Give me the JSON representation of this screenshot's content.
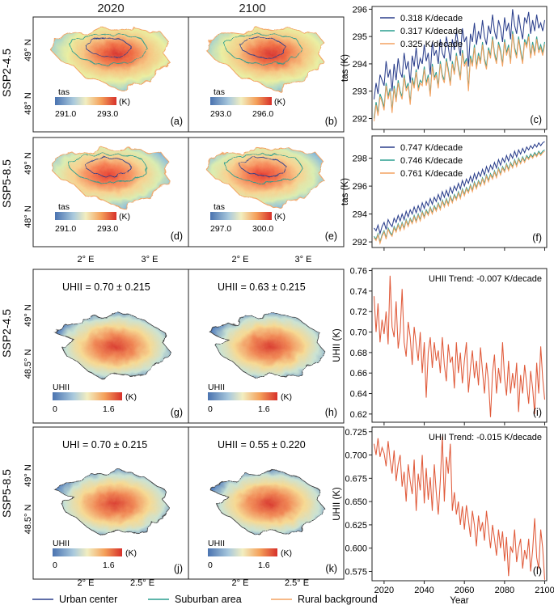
{
  "columns": [
    "2020",
    "2100"
  ],
  "row_labels": [
    "SSP2-4.5",
    "SSP5-8.5",
    "SSP2-4.5",
    "SSP5-8.5"
  ],
  "map_lat_ticks_top": [
    "49° N",
    "48° N"
  ],
  "map_lon_ticks_top": [
    "2° E",
    "3° E"
  ],
  "map_lat_ticks_bottom": [
    "49° N",
    "48.5° N"
  ],
  "map_lon_ticks_bottom": [
    "2° E",
    "2.5° E"
  ],
  "maps": [
    {
      "id": "a",
      "label": "(a)",
      "var": "tas",
      "min": "291.0",
      "max": "293.0",
      "unit": "(K)",
      "kind": "tas",
      "warm": 0.45
    },
    {
      "id": "b",
      "label": "(b)",
      "var": "tas",
      "min": "293.0",
      "max": "296.0",
      "unit": "(K)",
      "kind": "tas",
      "warm": 0.5
    },
    {
      "id": "d",
      "label": "(d)",
      "var": "tas",
      "min": "291.0",
      "max": "293.0",
      "unit": "(K)",
      "kind": "tas",
      "warm": 0.35
    },
    {
      "id": "e",
      "label": "(e)",
      "var": "tas",
      "min": "297.0",
      "max": "300.0",
      "unit": "(K)",
      "kind": "tas",
      "warm": 0.3
    },
    {
      "id": "g",
      "label": "(g)",
      "var": "UHII",
      "min": "0",
      "max": "1.6",
      "unit": "(K)",
      "kind": "uhi",
      "title": "UHII = 0.70 ± 0.215"
    },
    {
      "id": "h",
      "label": "(h)",
      "var": "UHII",
      "min": "0",
      "max": "1.6",
      "unit": "(K)",
      "kind": "uhi",
      "title": "UHII = 0.63 ± 0.215"
    },
    {
      "id": "j",
      "label": "(j)",
      "var": "UHII",
      "min": "0",
      "max": "1.6",
      "unit": "(K)",
      "kind": "uhi",
      "title": "UHI = 0.70 ± 0.215"
    },
    {
      "id": "k",
      "label": "(k)",
      "var": "UHII",
      "min": "0",
      "max": "1.6",
      "unit": "(K)",
      "kind": "uhi",
      "title": "UHII = 0.55 ± 0.220"
    }
  ],
  "legend": [
    {
      "name": "Urban center",
      "color": "#2b3f8c"
    },
    {
      "name": "Suburban area",
      "color": "#2a9d8f"
    },
    {
      "name": "Rural background",
      "color": "#f4a261"
    }
  ],
  "chart_data": [
    {
      "id": "c",
      "panel_label": "(c)",
      "type": "line",
      "ylabel": "tas (K)",
      "xlim": [
        2014,
        2101
      ],
      "ylim": [
        291.6,
        296.1
      ],
      "yticks": [
        292,
        293,
        294,
        295,
        296
      ],
      "series_legend": [
        "0.318 K/decade",
        "0.317 K/decade",
        "0.325 K/decade"
      ],
      "series": [
        {
          "name": "Urban center",
          "color": "#2b3f8c",
          "start": 2015,
          "values": [
            292.7,
            293.3,
            292.9,
            293.6,
            293.4,
            293.2,
            294.1,
            293.5,
            293.8,
            293.0,
            294.0,
            293.4,
            294.2,
            293.7,
            293.5,
            294.4,
            293.8,
            294.1,
            293.3,
            294.3,
            293.9,
            294.6,
            293.8,
            294.2,
            294.0,
            294.7,
            294.1,
            294.4,
            293.6,
            294.8,
            294.3,
            294.5,
            294.0,
            294.9,
            294.4,
            294.2,
            295.0,
            294.6,
            294.1,
            294.9,
            294.5,
            295.2,
            294.7,
            294.3,
            295.3,
            294.8,
            295.0,
            293.9,
            295.1,
            294.8,
            295.5,
            294.7,
            295.2,
            294.9,
            295.6,
            295.0,
            294.7,
            295.4,
            295.1,
            295.8,
            295.2,
            294.9,
            295.6,
            295.3,
            294.8,
            295.7,
            295.2,
            295.5,
            294.9,
            296.0,
            295.4,
            295.1,
            295.8,
            295.3,
            294.9,
            295.7,
            295.5,
            295.9,
            295.1,
            295.6,
            295.2,
            295.8,
            295.3,
            295.5,
            295.2,
            295.6
          ]
        },
        {
          "name": "Suburban area",
          "color": "#2a9d8f",
          "start": 2015,
          "values": [
            292.0,
            292.6,
            292.2,
            292.9,
            292.7,
            292.4,
            293.3,
            292.8,
            293.1,
            292.3,
            293.2,
            292.7,
            293.4,
            293.0,
            292.8,
            293.6,
            293.1,
            293.3,
            292.6,
            293.5,
            293.2,
            293.8,
            293.1,
            293.4,
            293.3,
            293.9,
            293.3,
            293.6,
            292.9,
            294.0,
            293.5,
            293.7,
            293.2,
            294.1,
            293.6,
            293.4,
            294.2,
            293.8,
            293.3,
            294.1,
            293.7,
            294.4,
            293.9,
            293.5,
            294.5,
            294.0,
            294.2,
            293.1,
            294.3,
            294.0,
            294.7,
            293.9,
            294.4,
            294.1,
            294.8,
            294.2,
            293.9,
            294.6,
            294.3,
            295.0,
            294.4,
            294.1,
            294.8,
            294.5,
            294.0,
            294.9,
            294.4,
            294.7,
            294.1,
            295.2,
            294.6,
            294.3,
            295.0,
            294.5,
            294.1,
            294.9,
            294.7,
            295.1,
            294.3,
            294.8,
            294.4,
            295.0,
            294.5,
            294.7,
            294.4,
            294.8
          ]
        },
        {
          "name": "Rural background",
          "color": "#f4a261",
          "start": 2015,
          "values": [
            291.9,
            292.5,
            292.1,
            292.8,
            292.6,
            292.3,
            293.2,
            292.7,
            293.0,
            292.2,
            293.1,
            292.6,
            293.3,
            292.9,
            292.7,
            293.5,
            293.0,
            293.2,
            292.5,
            293.4,
            293.1,
            293.7,
            293.0,
            293.3,
            293.2,
            293.8,
            293.2,
            293.5,
            292.8,
            293.9,
            293.4,
            293.6,
            293.1,
            294.0,
            293.5,
            293.3,
            294.1,
            293.7,
            293.2,
            294.0,
            293.6,
            294.3,
            293.8,
            293.4,
            294.4,
            293.9,
            294.1,
            293.0,
            294.2,
            293.9,
            294.6,
            293.8,
            294.3,
            294.0,
            294.7,
            294.1,
            293.8,
            294.5,
            294.2,
            294.9,
            294.3,
            294.0,
            294.7,
            294.4,
            293.9,
            294.8,
            294.3,
            294.6,
            294.0,
            295.1,
            294.5,
            294.2,
            294.9,
            294.4,
            294.0,
            294.8,
            294.6,
            295.0,
            294.2,
            294.7,
            294.3,
            294.9,
            294.4,
            294.6,
            294.3,
            294.7
          ]
        }
      ]
    },
    {
      "id": "f",
      "panel_label": "(f)",
      "type": "line",
      "ylabel": "tas (K)",
      "xlim": [
        2014,
        2101
      ],
      "ylim": [
        291.6,
        299.6
      ],
      "yticks": [
        292,
        294,
        296,
        298
      ],
      "series_legend": [
        "0.747 K/decade",
        "0.746 K/decade",
        "0.761 K/decade"
      ],
      "series": [
        {
          "name": "Urban center",
          "color": "#2b3f8c",
          "start": 2015,
          "values": [
            293.0,
            292.8,
            293.2,
            292.6,
            293.1,
            293.4,
            292.9,
            293.6,
            293.3,
            293.1,
            293.7,
            293.4,
            293.9,
            293.5,
            294.0,
            293.6,
            294.2,
            293.8,
            294.3,
            294.0,
            294.5,
            294.1,
            294.6,
            294.2,
            294.8,
            294.4,
            294.9,
            294.6,
            295.1,
            294.7,
            295.2,
            294.9,
            295.4,
            295.0,
            295.6,
            295.2,
            295.7,
            295.3,
            295.9,
            295.5,
            296.0,
            295.7,
            296.2,
            295.8,
            296.4,
            296.0,
            296.5,
            296.2,
            296.7,
            296.3,
            296.9,
            296.5,
            297.0,
            296.7,
            297.2,
            296.8,
            297.4,
            297.0,
            297.5,
            297.2,
            297.7,
            297.3,
            297.9,
            297.5,
            298.0,
            297.7,
            298.2,
            297.8,
            298.3,
            298.0,
            298.5,
            298.1,
            298.6,
            298.3,
            298.7,
            298.4,
            298.8,
            298.6,
            298.9,
            298.7,
            299.0,
            298.8,
            299.1,
            298.9,
            299.1,
            299.2
          ]
        },
        {
          "name": "Suburban area",
          "color": "#2a9d8f",
          "start": 2015,
          "values": [
            292.4,
            292.2,
            292.6,
            292.0,
            292.5,
            292.8,
            292.3,
            293.0,
            292.7,
            292.5,
            293.1,
            292.8,
            293.3,
            292.9,
            293.4,
            293.0,
            293.6,
            293.2,
            293.7,
            293.4,
            293.9,
            293.5,
            294.0,
            293.6,
            294.2,
            293.8,
            294.3,
            294.0,
            294.5,
            294.1,
            294.6,
            294.3,
            294.8,
            294.4,
            295.0,
            294.6,
            295.1,
            294.7,
            295.3,
            294.9,
            295.4,
            295.1,
            295.6,
            295.2,
            295.8,
            295.4,
            295.9,
            295.6,
            296.1,
            295.7,
            296.3,
            295.9,
            296.4,
            296.1,
            296.6,
            296.2,
            296.8,
            296.4,
            296.9,
            296.6,
            297.1,
            296.7,
            297.3,
            296.9,
            297.4,
            297.1,
            297.6,
            297.2,
            297.7,
            297.4,
            297.9,
            297.5,
            298.0,
            297.7,
            298.1,
            297.8,
            298.2,
            298.0,
            298.3,
            298.1,
            298.4,
            298.2,
            298.5,
            298.3,
            298.5,
            298.6
          ]
        },
        {
          "name": "Rural background",
          "color": "#f4a261",
          "start": 2015,
          "values": [
            292.3,
            292.1,
            292.5,
            291.9,
            292.4,
            292.7,
            292.2,
            292.9,
            292.6,
            292.4,
            293.0,
            292.7,
            293.2,
            292.8,
            293.3,
            292.9,
            293.5,
            293.1,
            293.6,
            293.3,
            293.8,
            293.4,
            293.9,
            293.5,
            294.1,
            293.7,
            294.2,
            293.9,
            294.4,
            294.0,
            294.5,
            294.2,
            294.7,
            294.3,
            294.9,
            294.5,
            295.0,
            294.6,
            295.2,
            294.8,
            295.3,
            295.0,
            295.5,
            295.1,
            295.7,
            295.3,
            295.8,
            295.5,
            296.0,
            295.6,
            296.2,
            295.8,
            296.3,
            296.0,
            296.5,
            296.1,
            296.7,
            296.3,
            296.8,
            296.5,
            297.0,
            296.6,
            297.2,
            296.8,
            297.3,
            297.0,
            297.5,
            297.1,
            297.6,
            297.3,
            297.8,
            297.4,
            297.9,
            297.6,
            298.0,
            297.7,
            298.1,
            297.9,
            298.2,
            298.0,
            298.3,
            298.1,
            298.4,
            298.2,
            298.4,
            298.5
          ]
        }
      ]
    },
    {
      "id": "i",
      "panel_label": "(i)",
      "type": "line",
      "annotation": "UHII Trend: -0.007 K/decade",
      "ylabel": "UHII (K)",
      "xlim": [
        2014,
        2101
      ],
      "ylim": [
        0.612,
        0.762
      ],
      "yticks": [
        "0.62",
        "0.64",
        "0.66",
        "0.68",
        "0.70",
        "0.72",
        "0.74",
        "0.76"
      ],
      "series": [
        {
          "name": "UHII",
          "color": "#e05a3a",
          "start": 2015,
          "values": [
            0.735,
            0.7,
            0.728,
            0.69,
            0.712,
            0.698,
            0.72,
            0.688,
            0.755,
            0.705,
            0.695,
            0.73,
            0.684,
            0.7,
            0.742,
            0.69,
            0.676,
            0.71,
            0.695,
            0.668,
            0.705,
            0.688,
            0.672,
            0.7,
            0.66,
            0.69,
            0.636,
            0.68,
            0.695,
            0.665,
            0.69,
            0.672,
            0.682,
            0.66,
            0.695,
            0.668,
            0.652,
            0.688,
            0.67,
            0.676,
            0.645,
            0.69,
            0.66,
            0.68,
            0.65,
            0.672,
            0.69,
            0.641,
            0.665,
            0.682,
            0.655,
            0.672,
            0.648,
            0.685,
            0.662,
            0.64,
            0.67,
            0.652,
            0.617,
            0.66,
            0.678,
            0.64,
            0.665,
            0.65,
            0.69,
            0.655,
            0.638,
            0.672,
            0.64,
            0.66,
            0.645,
            0.67,
            0.622,
            0.658,
            0.64,
            0.668,
            0.65,
            0.63,
            0.662,
            0.645,
            0.62,
            0.67,
            0.64,
            0.686,
            0.655,
            0.634
          ]
        }
      ]
    },
    {
      "id": "l",
      "panel_label": "(l)",
      "type": "line",
      "annotation": "UHII Trend: -0.015 K/decade",
      "ylabel": "UHII (K)",
      "xlabel": "Year",
      "xlim": [
        2014,
        2101
      ],
      "ylim": [
        0.565,
        0.73
      ],
      "yticks": [
        "0.575",
        "0.600",
        "0.625",
        "0.650",
        "0.675",
        "0.700",
        "0.725"
      ],
      "xticks": [
        2020,
        2040,
        2060,
        2080,
        2100
      ],
      "series": [
        {
          "name": "UHII",
          "color": "#e05a3a",
          "start": 2015,
          "values": [
            0.712,
            0.7,
            0.718,
            0.698,
            0.708,
            0.702,
            0.688,
            0.715,
            0.695,
            0.68,
            0.705,
            0.672,
            0.69,
            0.7,
            0.666,
            0.682,
            0.65,
            0.69,
            0.672,
            0.658,
            0.695,
            0.64,
            0.68,
            0.662,
            0.7,
            0.648,
            0.686,
            0.652,
            0.676,
            0.64,
            0.69,
            0.66,
            0.636,
            0.672,
            0.72,
            0.65,
            0.698,
            0.68,
            0.712,
            0.64,
            0.66,
            0.636,
            0.65,
            0.625,
            0.645,
            0.62,
            0.646,
            0.63,
            0.612,
            0.64,
            0.625,
            0.602,
            0.635,
            0.618,
            0.628,
            0.608,
            0.64,
            0.62,
            0.6,
            0.625,
            0.61,
            0.592,
            0.62,
            0.6,
            0.618,
            0.586,
            0.612,
            0.57,
            0.602,
            0.595,
            0.62,
            0.585,
            0.6,
            0.61,
            0.578,
            0.598,
            0.588,
            0.61,
            0.575,
            0.598,
            0.632,
            0.59,
            0.578,
            0.62,
            0.6,
            0.566
          ]
        }
      ]
    }
  ]
}
